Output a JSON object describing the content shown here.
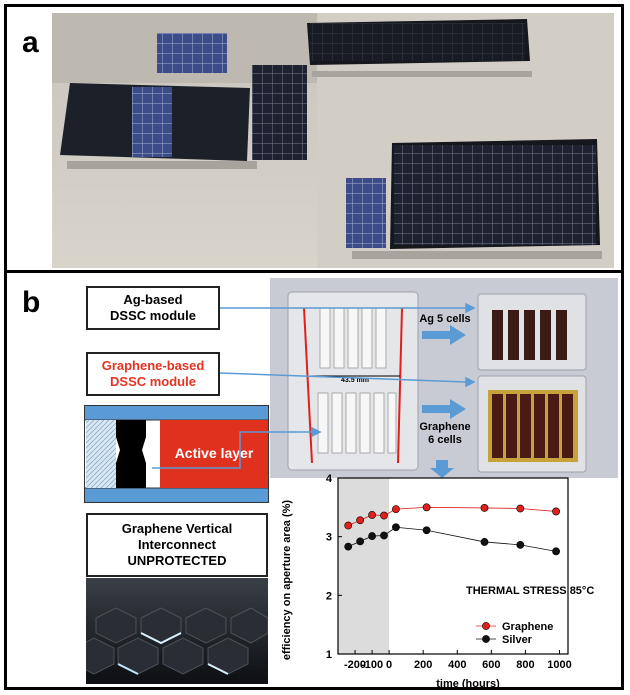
{
  "panel_a": {
    "letter": "a"
  },
  "panel_b": {
    "letter": "b",
    "ag_box": {
      "line1": "Ag-based",
      "line2": "DSSC module"
    },
    "graphene_box": {
      "line1": "Graphene-based",
      "line2": "DSSC module"
    },
    "active_layer_label": "Active layer",
    "interconnect_box": {
      "line1": "Graphene Vertical",
      "line2": "Interconnect",
      "line3": "UNPROTECTED"
    },
    "photo_labels": {
      "dimension": "43.5 mm",
      "ag_cells_1": "Ag 5 cells",
      "graphene_cells_1": "Graphene",
      "graphene_cells_2": "6 cells"
    }
  },
  "chart_data": {
    "type": "line",
    "annotation": "THERMAL STRESS 85°C",
    "xlabel": "time (hours)",
    "ylabel": "efficiency on aperture area (%)",
    "xlim": [
      -300,
      1050
    ],
    "ylim": [
      1,
      4
    ],
    "xticks": [
      -200,
      -100,
      0,
      200,
      400,
      600,
      800,
      1000
    ],
    "yticks": [
      1,
      2,
      3,
      4
    ],
    "shaded_region": [
      -300,
      0
    ],
    "legend_position": "bottom-right",
    "series": [
      {
        "name": "Graphene",
        "color": "#e0201b",
        "x": [
          -240,
          -170,
          -100,
          -30,
          40,
          220,
          560,
          770,
          980
        ],
        "y": [
          3.19,
          3.28,
          3.37,
          3.36,
          3.47,
          3.5,
          3.49,
          3.48,
          3.43
        ]
      },
      {
        "name": "Silver",
        "color": "#111111",
        "x": [
          -240,
          -170,
          -100,
          -30,
          40,
          220,
          560,
          770,
          980
        ],
        "y": [
          2.83,
          2.92,
          3.01,
          3.02,
          3.16,
          3.11,
          2.91,
          2.86,
          2.75
        ]
      }
    ]
  }
}
